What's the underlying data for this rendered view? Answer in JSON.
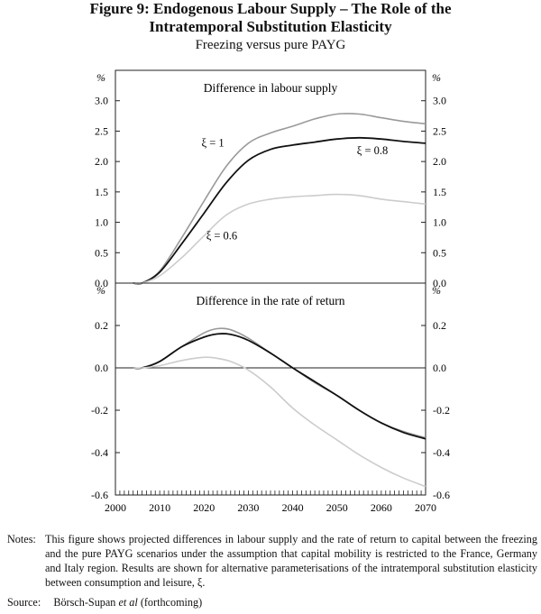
{
  "title_line1": "Figure 9: Endogenous Labour Supply – The Role of the",
  "title_line2": "Intratemporal Substitution Elasticity",
  "subtitle": "Freezing versus pure PAYG",
  "notes_label": "Notes:",
  "notes_text": "This figure shows projected differences in labour supply and the rate of return to capital between the freezing and the pure PAYG scenarios under the assumption that capital mobility is restricted to the France, Germany and Italy region. Results are shown for alternative parameterisations of the intratemporal substitution elasticity between consumption and leisure, ξ.",
  "source_label": "Source:",
  "source_text_pre": "Börsch-Supan ",
  "source_text_italic": "et al",
  "source_text_post": " (forthcoming)",
  "colors": {
    "xi1": "#9a9a9a",
    "xi08": "#111111",
    "xi06": "#cccccc",
    "axis": "#222222"
  },
  "chart_data": [
    {
      "type": "line",
      "title": "Difference in labour supply",
      "unit_label": "%",
      "ylim": [
        0,
        3.5
      ],
      "yticks": [
        "0.0",
        "0.5",
        "1.0",
        "1.5",
        "2.0",
        "2.5",
        "3.0"
      ],
      "ytick_values": [
        0,
        0.5,
        1,
        1.5,
        2,
        2.5,
        3
      ],
      "x": [
        2004,
        2006,
        2010,
        2015,
        2020,
        2025,
        2030,
        2035,
        2040,
        2045,
        2050,
        2055,
        2060,
        2065,
        2070
      ],
      "series": [
        {
          "name": "ξ = 1",
          "key": "xi1",
          "values": [
            0,
            0,
            0.2,
            0.75,
            1.35,
            1.92,
            2.3,
            2.47,
            2.58,
            2.7,
            2.78,
            2.78,
            2.72,
            2.66,
            2.62
          ]
        },
        {
          "name": "ξ = 0.8",
          "key": "xi08",
          "values": [
            0,
            0,
            0.18,
            0.65,
            1.15,
            1.65,
            2.02,
            2.2,
            2.27,
            2.32,
            2.37,
            2.39,
            2.37,
            2.33,
            2.3
          ]
        },
        {
          "name": "ξ = 0.6",
          "key": "xi06",
          "values": [
            0,
            0,
            0.12,
            0.42,
            0.78,
            1.12,
            1.3,
            1.38,
            1.42,
            1.44,
            1.46,
            1.44,
            1.38,
            1.34,
            1.3
          ]
        }
      ],
      "labels": [
        {
          "text": "ξ = 1",
          "x": 2022,
          "y": 2.25
        },
        {
          "text": "ξ = 0.8",
          "x": 2058,
          "y": 2.12
        },
        {
          "text": "ξ = 0.6",
          "x": 2024,
          "y": 0.72
        }
      ]
    },
    {
      "type": "line",
      "title": "Difference in the rate of return",
      "unit_label": "%",
      "ylim": [
        -0.6,
        0.4
      ],
      "yticks": [
        "-0.6",
        "-0.4",
        "-0.2",
        "0.0",
        "0.2"
      ],
      "ytick_values": [
        -0.6,
        -0.4,
        -0.2,
        0,
        0.2
      ],
      "x": [
        2004,
        2006,
        2010,
        2015,
        2020,
        2023,
        2026,
        2030,
        2035,
        2040,
        2045,
        2050,
        2055,
        2060,
        2065,
        2070
      ],
      "series": [
        {
          "name": "ξ = 1",
          "key": "xi1",
          "values": [
            0,
            0,
            0.03,
            0.1,
            0.165,
            0.185,
            0.18,
            0.14,
            0.07,
            0,
            -0.07,
            -0.13,
            -0.2,
            -0.26,
            -0.3,
            -0.33
          ]
        },
        {
          "name": "ξ = 0.8",
          "key": "xi08",
          "values": [
            0,
            0,
            0.03,
            0.1,
            0.145,
            0.16,
            0.158,
            0.13,
            0.07,
            0,
            -0.065,
            -0.13,
            -0.2,
            -0.26,
            -0.305,
            -0.335
          ]
        },
        {
          "name": "ξ = 0.6",
          "key": "xi06",
          "values": [
            0,
            0,
            0.01,
            0.035,
            0.05,
            0.045,
            0.03,
            -0.01,
            -0.09,
            -0.19,
            -0.27,
            -0.34,
            -0.41,
            -0.47,
            -0.52,
            -0.56
          ]
        }
      ],
      "labels": []
    }
  ],
  "xaxis": {
    "min": 2000,
    "max": 2070,
    "ticks": [
      "2000",
      "2010",
      "2020",
      "2030",
      "2040",
      "2050",
      "2060",
      "2070"
    ],
    "tick_values": [
      2000,
      2010,
      2020,
      2030,
      2040,
      2050,
      2060,
      2070
    ]
  }
}
